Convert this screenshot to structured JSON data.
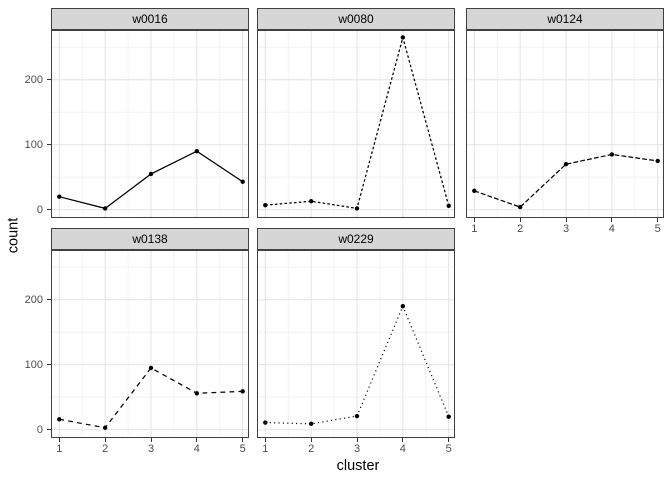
{
  "figure": {
    "kind": "faceted line chart (ggplot2 theme_bw style)",
    "background": "#ffffff"
  },
  "chart_data": {
    "type": "line",
    "faceted": true,
    "facet_layout": {
      "rows": 2,
      "cols": 3,
      "panels": 5
    },
    "facet_titles": [
      "w0016",
      "w0080",
      "w0124",
      "w0138",
      "w0229"
    ],
    "x": [
      1,
      2,
      3,
      4,
      5
    ],
    "x_tick_labels": [
      "1",
      "2",
      "3",
      "4",
      "5"
    ],
    "xlabel": "cluster",
    "ylabel": "count",
    "y_ticks": [
      0,
      100,
      200
    ],
    "y_tick_labels": [
      "0",
      "100",
      "200"
    ],
    "y_minor_ticks": [
      50,
      150,
      250
    ],
    "x_minor_ticks": [
      1.5,
      2.5,
      3.5,
      4.5
    ],
    "ylim": [
      -12,
      277
    ],
    "grid": true,
    "legend": "none",
    "marker": "filled-circle",
    "series": [
      {
        "name": "w0016",
        "linetype": "solid",
        "values": [
          20,
          2,
          55,
          90,
          43
        ]
      },
      {
        "name": "w0080",
        "linetype": "short-dash",
        "values": [
          7,
          13,
          2,
          265,
          6
        ]
      },
      {
        "name": "w0124",
        "linetype": "medium-dash",
        "values": [
          29,
          4,
          70,
          85,
          75
        ]
      },
      {
        "name": "w0138",
        "linetype": "long-dash",
        "values": [
          16,
          3,
          95,
          56,
          59
        ]
      },
      {
        "name": "w0229",
        "linetype": "dotted",
        "values": [
          11,
          9,
          21,
          190,
          20
        ]
      }
    ]
  },
  "style": {
    "strip_fill": "#d6d6d6",
    "strip_text_color": "#000000",
    "border_color": "#404040",
    "grid_major_color": "#e3e3e3",
    "grid_minor_color": "#f0f0f0",
    "tick_mark_color": "#333333",
    "tick_label_color": "#4d4d4d",
    "data_color": "#000000"
  }
}
